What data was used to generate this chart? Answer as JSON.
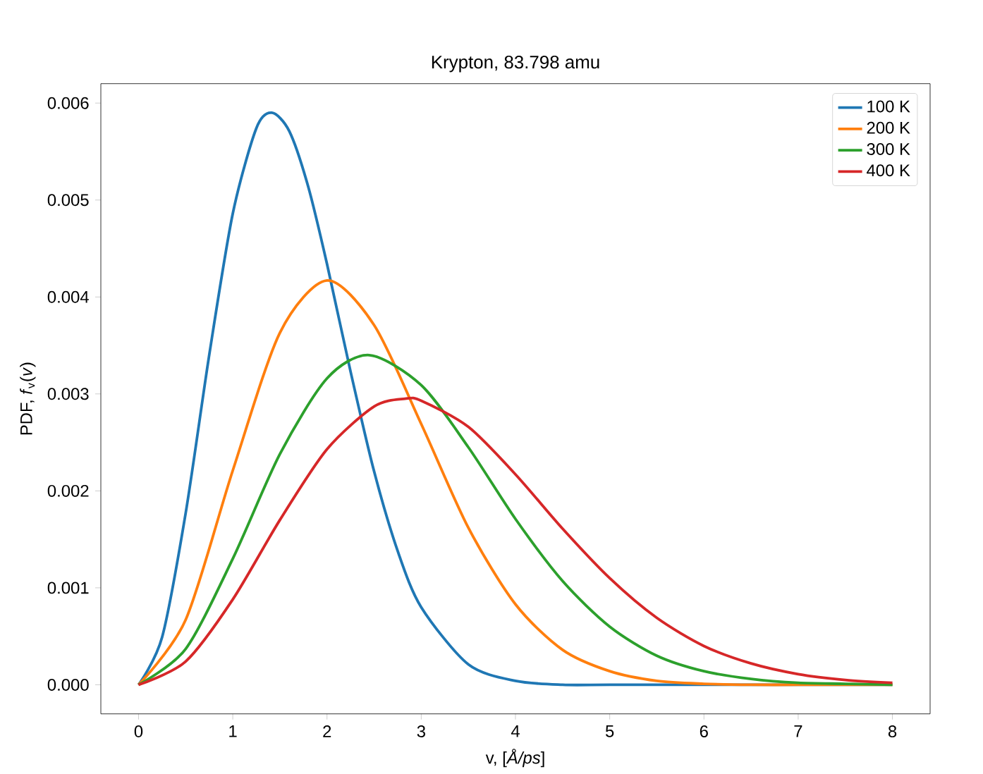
{
  "chart_data": {
    "type": "line",
    "title": "Krypton, 83.798 amu",
    "xlabel": "v, [*Å/ps*]",
    "ylabel": "PDF, *f*$_{v}$(*v*)",
    "xlim": [
      -0.4,
      8.4
    ],
    "ylim": [
      -0.0003,
      0.0062
    ],
    "xticks": [
      0,
      1,
      2,
      3,
      4,
      5,
      6,
      7,
      8
    ],
    "yticks": [
      {
        "value": 0,
        "label": "0.000"
      },
      {
        "value": 0.001,
        "label": "0.001"
      },
      {
        "value": 0.002,
        "label": "0.002"
      },
      {
        "value": 0.003,
        "label": "0.003"
      },
      {
        "value": 0.004,
        "label": "0.004"
      },
      {
        "value": 0.005,
        "label": "0.005"
      },
      {
        "value": 0.006,
        "label": "0.006"
      }
    ],
    "legend": "top right",
    "grid": false,
    "marker": "none",
    "line_style": "solid",
    "series": [
      {
        "name": "100 K",
        "color": "#1f77b4",
        "x": [
          0,
          0.25,
          0.5,
          0.75,
          1.0,
          1.25,
          1.414,
          1.6,
          1.8,
          2.0,
          2.25,
          2.5,
          2.75,
          3.0,
          3.5,
          4.0,
          4.5,
          5,
          6,
          7,
          8
        ],
        "values": [
          0,
          0.00049,
          0.00177,
          0.0034,
          0.00486,
          0.00574,
          0.0059,
          0.00571,
          0.00514,
          0.00434,
          0.00323,
          0.0022,
          0.00138,
          0.0008,
          0.00021,
          4e-05,
          0,
          0,
          0,
          0,
          0
        ]
      },
      {
        "name": "200 K",
        "color": "#ff7f0e",
        "x": [
          0,
          0.5,
          1.0,
          1.5,
          2.0,
          2.5,
          3.0,
          3.5,
          4.0,
          4.5,
          5.0,
          5.5,
          6.0,
          6.5,
          7,
          7.5,
          8
        ],
        "values": [
          0,
          0.00067,
          0.00221,
          0.00363,
          0.00417,
          0.00371,
          0.00269,
          0.00162,
          0.00083,
          0.00036,
          0.00014,
          4e-05,
          1e-05,
          0,
          0,
          0,
          0
        ]
      },
      {
        "name": "300 K",
        "color": "#2ca02c",
        "x": [
          0,
          0.5,
          1.0,
          1.5,
          2.0,
          2.449,
          3.0,
          3.5,
          4.0,
          4.5,
          5.0,
          5.5,
          6.0,
          6.5,
          7.0,
          7.5,
          8
        ],
        "values": [
          0,
          0.00037,
          0.0013,
          0.00238,
          0.00316,
          0.0034,
          0.00309,
          0.00245,
          0.00171,
          0.00107,
          0.0006,
          0.0003,
          0.00014,
          6e-05,
          2e-05,
          1e-05,
          0
        ]
      },
      {
        "name": "400 K",
        "color": "#d62728",
        "x": [
          0,
          0.5,
          1.0,
          1.5,
          2.0,
          2.5,
          2.828,
          3.0,
          3.5,
          4.0,
          4.5,
          5.0,
          5.5,
          6.0,
          6.5,
          7.0,
          7.5,
          8.0
        ],
        "values": [
          0,
          0.00024,
          0.00088,
          0.0017,
          0.00243,
          0.00287,
          0.00295,
          0.00293,
          0.00266,
          0.00217,
          0.00161,
          0.0011,
          0.00069,
          0.0004,
          0.00022,
          0.00011,
          5e-05,
          2e-05
        ]
      }
    ]
  }
}
